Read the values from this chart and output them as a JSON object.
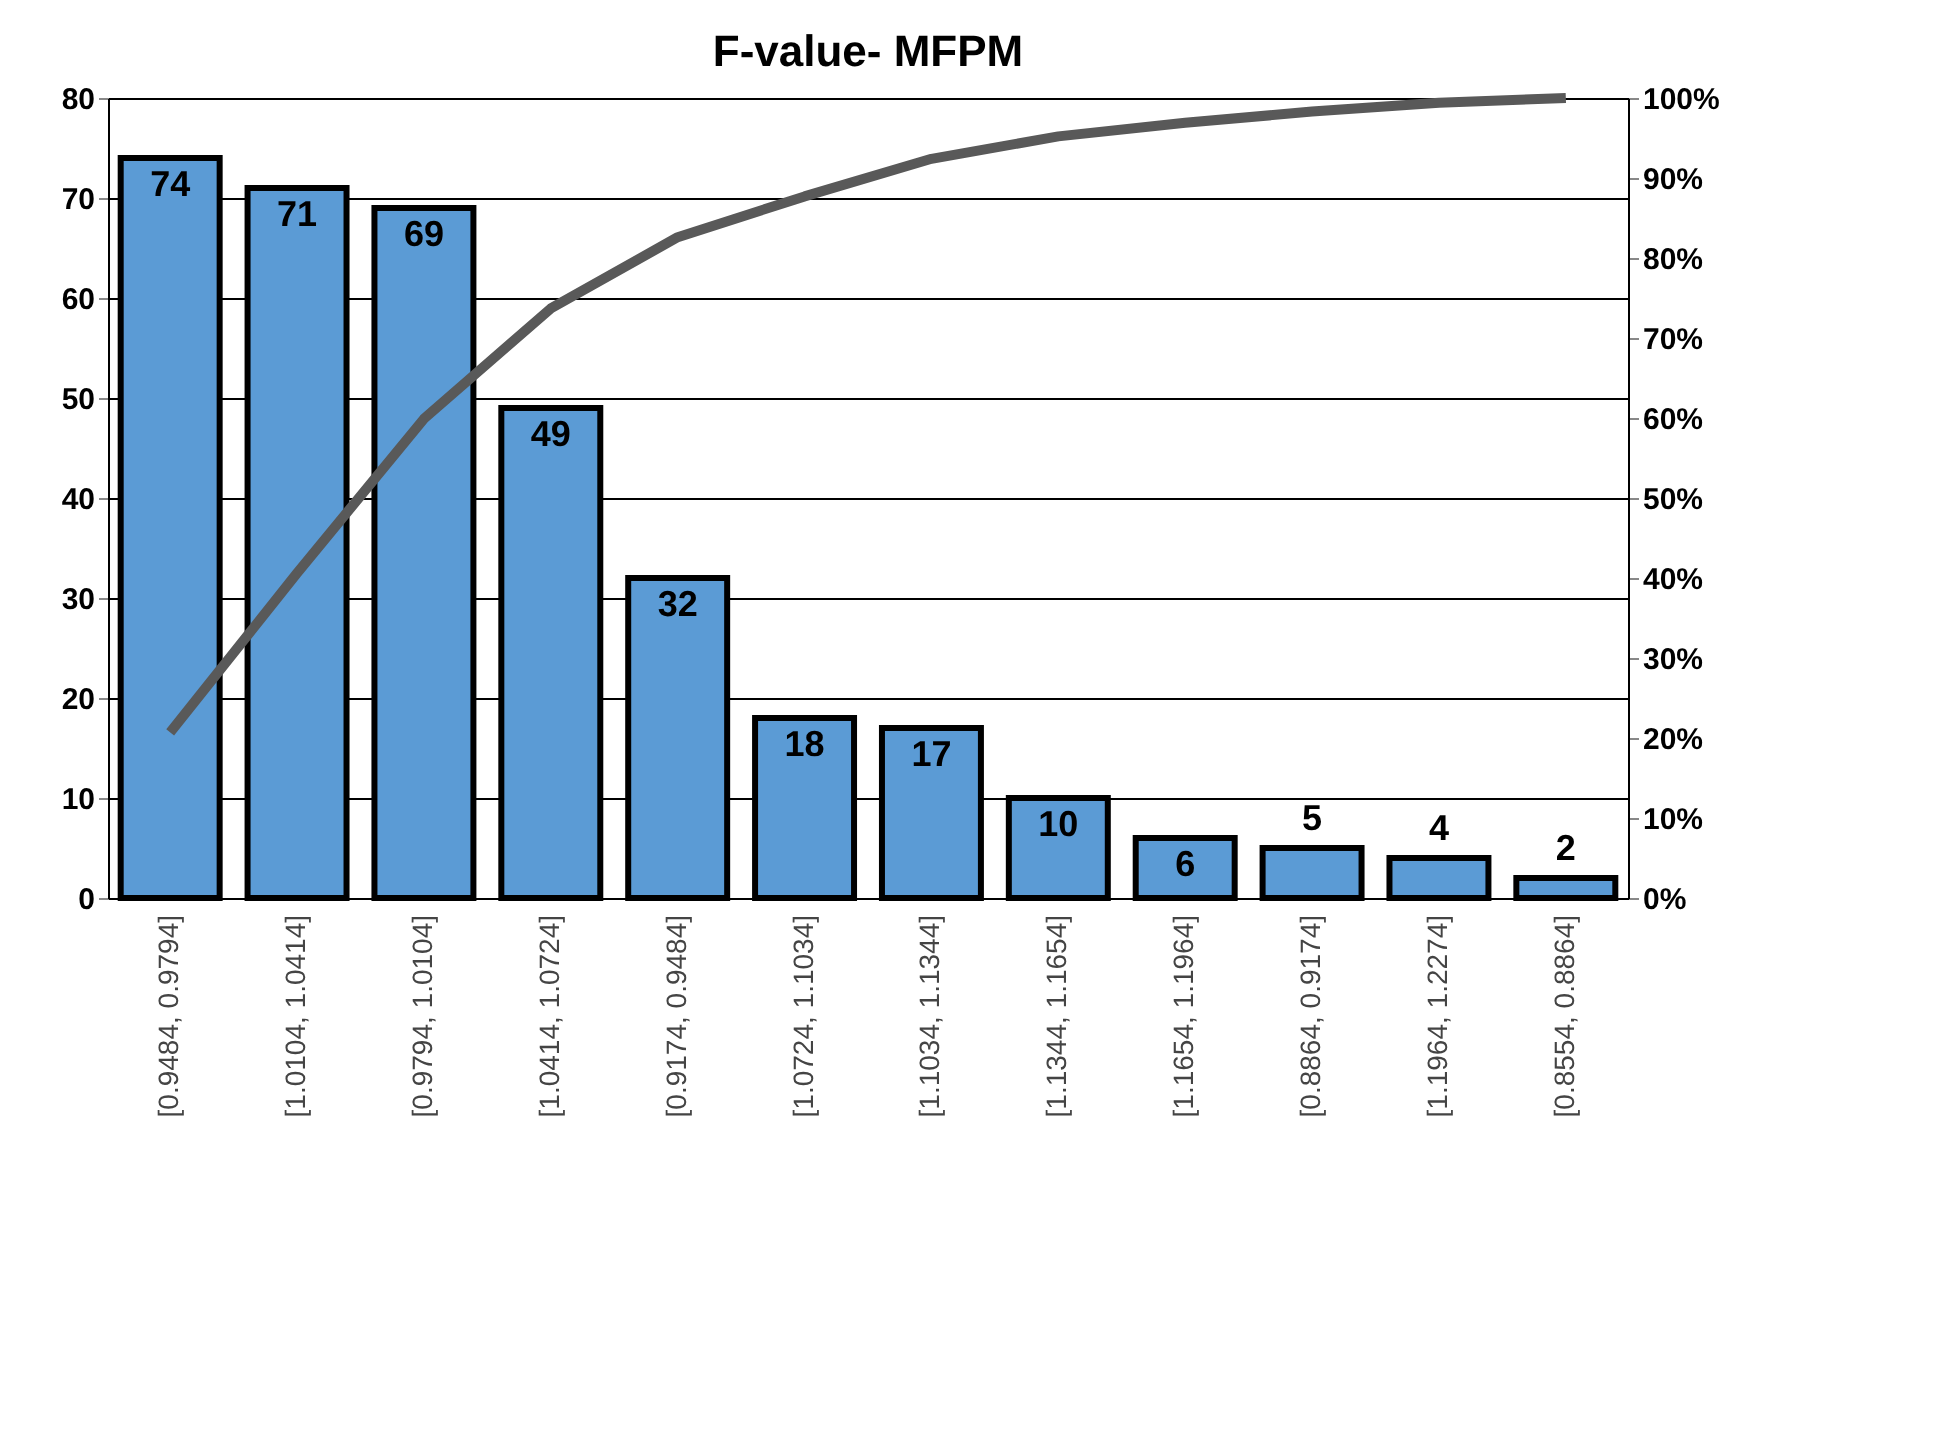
{
  "chart_data": {
    "type": "bar",
    "title": "F-value- MFPM",
    "categories": [
      "[0.9484, 0.9794]",
      "[1.0104, 1.0414]",
      "[0.9794, 1.0104]",
      "[1.0414, 1.0724]",
      "[0.9174, 0.9484]",
      "[1.0724, 1.1034]",
      "[1.1034, 1.1344]",
      "[1.1344, 1.1654]",
      "[1.1654, 1.1964]",
      "[0.8864, 0.9174]",
      "[1.1964, 1.2274]",
      "[0.8554, 0.8864]"
    ],
    "series": [
      {
        "color": "#5b9bd5",
        "values": [
          74,
          71,
          69,
          49,
          32,
          18,
          17,
          10,
          6,
          5,
          4,
          2
        ],
        "value_labels": [
          "74",
          "71",
          "69",
          "49",
          "32",
          "18",
          "17",
          "10",
          "6",
          "5",
          "4",
          "2"
        ]
      },
      {
        "type": "line",
        "axis": "y2",
        "color": "#595959",
        "values": [
          20.7,
          40.6,
          59.9,
          73.7,
          82.6,
          87.7,
          92.4,
          95.2,
          96.9,
          98.3,
          99.4,
          100
        ]
      }
    ],
    "ylim": [
      0,
      80
    ],
    "yticks": [
      0,
      10,
      20,
      30,
      40,
      50,
      60,
      70,
      80
    ],
    "y2lim": [
      0,
      100
    ],
    "y2ticks": [
      {
        "value": 0,
        "label": "0%"
      },
      {
        "value": 10,
        "label": "10%"
      },
      {
        "value": 20,
        "label": "20%"
      },
      {
        "value": 30,
        "label": "30%"
      },
      {
        "value": 40,
        "label": "40%"
      },
      {
        "value": 50,
        "label": "50%"
      },
      {
        "value": 60,
        "label": "60%"
      },
      {
        "value": 70,
        "label": "70%"
      },
      {
        "value": 80,
        "label": "80%"
      },
      {
        "value": 90,
        "label": "90%"
      },
      {
        "value": 100,
        "label": "100%"
      }
    ],
    "grid": "y",
    "marker": "none",
    "line_style": "solid"
  }
}
